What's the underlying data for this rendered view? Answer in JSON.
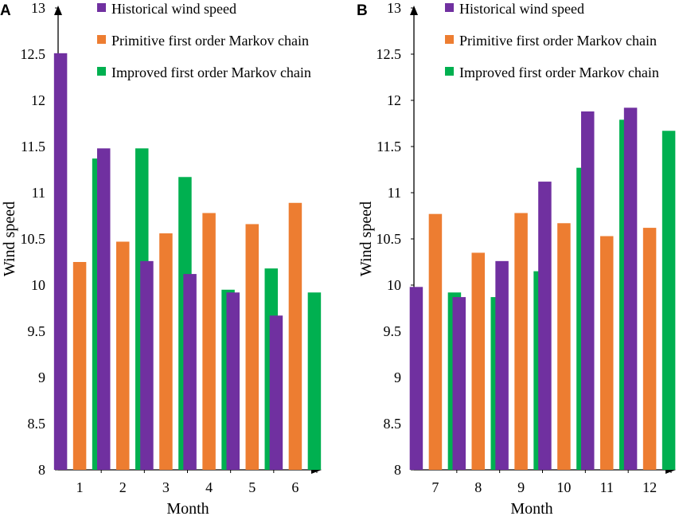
{
  "colors": {
    "historical": "#7030a0",
    "primitive": "#ed7d31",
    "improved": "#00b050",
    "axis": "#000000"
  },
  "chart_data": [
    {
      "panel": "A",
      "type": "bar",
      "categories": [
        "1",
        "2",
        "3",
        "4",
        "5",
        "6"
      ],
      "series": [
        {
          "name": "Historical wind speed",
          "values": [
            12.51,
            11.48,
            10.26,
            10.12,
            9.92,
            9.67
          ]
        },
        {
          "name": "Primitive first order Markov chain",
          "values": [
            10.25,
            10.47,
            10.56,
            10.78,
            10.66,
            10.89
          ]
        },
        {
          "name": "Improved first order Markov chain",
          "values": [
            11.37,
            11.48,
            11.17,
            9.95,
            10.18,
            9.92
          ]
        }
      ],
      "xlabel": "Month",
      "ylabel": "Wind speed",
      "ylim": [
        8,
        13
      ],
      "yticks": [
        "8",
        "8.5",
        "9",
        "9.5",
        "10",
        "10.5",
        "11",
        "11.5",
        "12",
        "12.5",
        "13"
      ],
      "grid": false,
      "legend_position": "top-right"
    },
    {
      "panel": "B",
      "type": "bar",
      "categories": [
        "7",
        "8",
        "9",
        "10",
        "11",
        "12"
      ],
      "series": [
        {
          "name": "Historical wind speed",
          "values": [
            9.98,
            9.87,
            10.26,
            11.12,
            11.88,
            11.92
          ]
        },
        {
          "name": "Primitive first order Markov chain",
          "values": [
            10.77,
            10.35,
            10.78,
            10.67,
            10.53,
            10.62
          ]
        },
        {
          "name": "Improved first order Markov chain",
          "values": [
            9.92,
            9.87,
            10.15,
            11.27,
            11.79,
            11.67
          ]
        }
      ],
      "xlabel": "Month",
      "ylabel": "Wind speed",
      "ylim": [
        8,
        13
      ],
      "yticks": [
        "8",
        "8.5",
        "9",
        "9.5",
        "10",
        "10.5",
        "11",
        "11.5",
        "12",
        "12.5",
        "13"
      ],
      "grid": false,
      "legend_position": "top-right"
    }
  ]
}
